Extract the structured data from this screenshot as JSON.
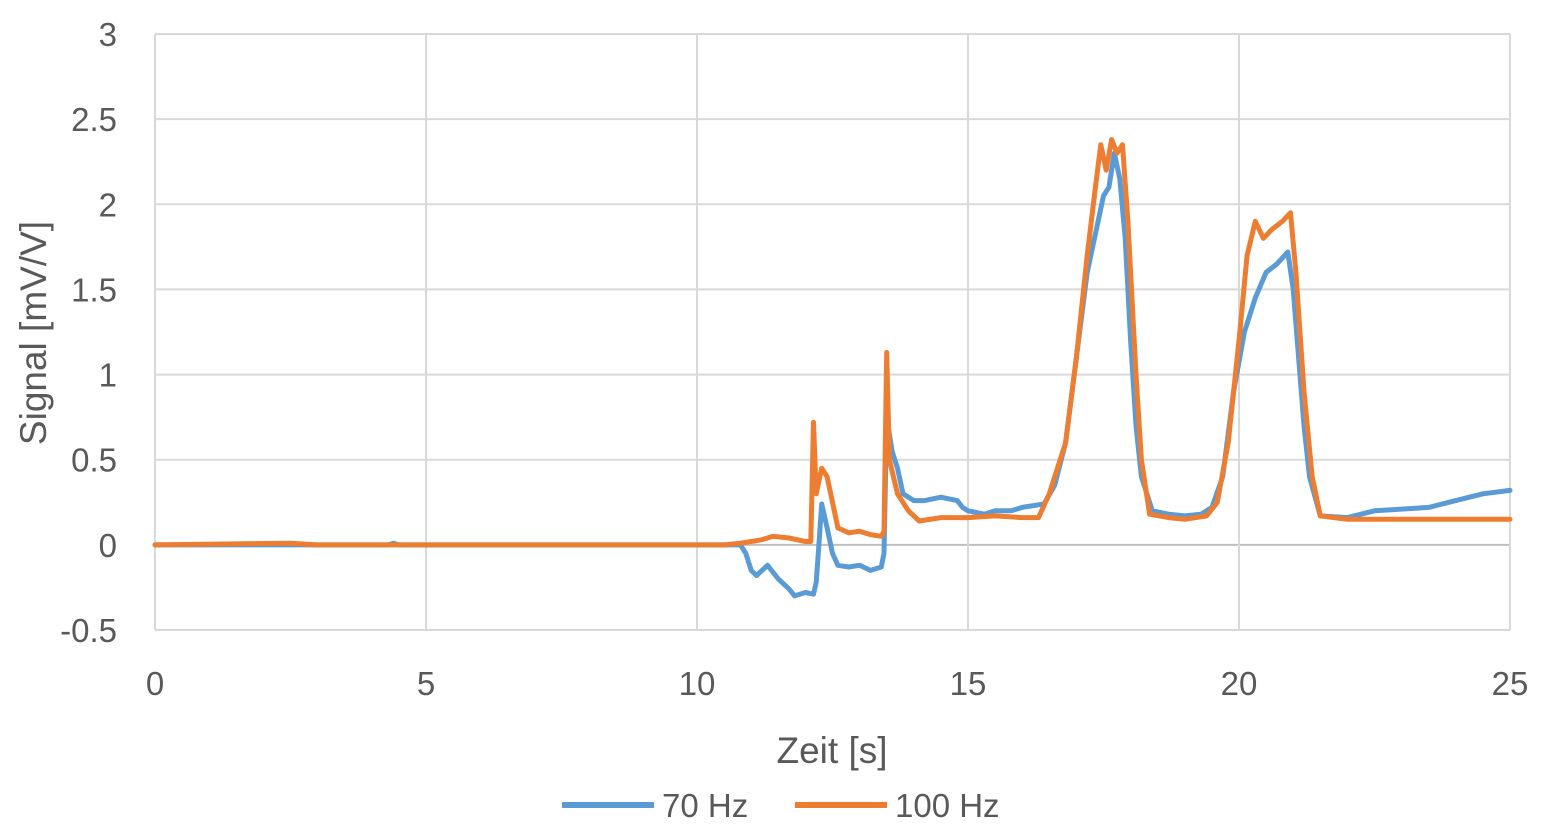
{
  "chart_data": {
    "type": "line",
    "title": "",
    "xlabel": "Zeit [s]",
    "ylabel": "Signal [mV/V]",
    "xlim": [
      0,
      25
    ],
    "ylim": [
      -0.5,
      3
    ],
    "x_ticks": [
      "0",
      "5",
      "10",
      "15",
      "20",
      "25"
    ],
    "y_ticks": [
      "3",
      "2.5",
      "2",
      "1.5",
      "1",
      "0.5",
      "0",
      "-0.5"
    ],
    "grid": true,
    "legend_position": "bottom",
    "series": [
      {
        "name": "70 Hz",
        "color": "#5B9BD5",
        "points": [
          [
            0,
            0.0
          ],
          [
            4.3,
            0.0
          ],
          [
            4.4,
            0.01
          ],
          [
            4.5,
            0.0
          ],
          [
            10.5,
            0.0
          ],
          [
            10.8,
            0.0
          ],
          [
            10.9,
            -0.05
          ],
          [
            11.0,
            -0.15
          ],
          [
            11.1,
            -0.18
          ],
          [
            11.3,
            -0.12
          ],
          [
            11.5,
            -0.2
          ],
          [
            11.7,
            -0.26
          ],
          [
            11.8,
            -0.3
          ],
          [
            12.0,
            -0.28
          ],
          [
            12.15,
            -0.29
          ],
          [
            12.2,
            -0.22
          ],
          [
            12.25,
            0.0
          ],
          [
            12.3,
            0.24
          ],
          [
            12.4,
            0.1
          ],
          [
            12.5,
            -0.05
          ],
          [
            12.6,
            -0.12
          ],
          [
            12.8,
            -0.13
          ],
          [
            13.0,
            -0.12
          ],
          [
            13.2,
            -0.15
          ],
          [
            13.4,
            -0.13
          ],
          [
            13.45,
            -0.05
          ],
          [
            13.5,
            0.75
          ],
          [
            13.6,
            0.55
          ],
          [
            13.7,
            0.45
          ],
          [
            13.8,
            0.3
          ],
          [
            14.0,
            0.26
          ],
          [
            14.2,
            0.26
          ],
          [
            14.5,
            0.28
          ],
          [
            14.8,
            0.26
          ],
          [
            14.9,
            0.22
          ],
          [
            15.0,
            0.2
          ],
          [
            15.3,
            0.18
          ],
          [
            15.5,
            0.2
          ],
          [
            15.8,
            0.2
          ],
          [
            16.0,
            0.22
          ],
          [
            16.2,
            0.23
          ],
          [
            16.4,
            0.24
          ],
          [
            16.6,
            0.35
          ],
          [
            16.8,
            0.6
          ],
          [
            17.0,
            1.1
          ],
          [
            17.2,
            1.6
          ],
          [
            17.4,
            1.9
          ],
          [
            17.5,
            2.05
          ],
          [
            17.6,
            2.1
          ],
          [
            17.7,
            2.3
          ],
          [
            17.8,
            2.15
          ],
          [
            17.9,
            1.8
          ],
          [
            18.0,
            1.2
          ],
          [
            18.1,
            0.7
          ],
          [
            18.2,
            0.4
          ],
          [
            18.4,
            0.2
          ],
          [
            18.7,
            0.18
          ],
          [
            19.0,
            0.17
          ],
          [
            19.3,
            0.18
          ],
          [
            19.5,
            0.22
          ],
          [
            19.7,
            0.4
          ],
          [
            19.9,
            0.9
          ],
          [
            20.1,
            1.25
          ],
          [
            20.3,
            1.45
          ],
          [
            20.5,
            1.6
          ],
          [
            20.7,
            1.65
          ],
          [
            20.9,
            1.72
          ],
          [
            21.0,
            1.5
          ],
          [
            21.1,
            1.1
          ],
          [
            21.2,
            0.7
          ],
          [
            21.3,
            0.4
          ],
          [
            21.5,
            0.17
          ],
          [
            22.0,
            0.16
          ],
          [
            22.5,
            0.2
          ],
          [
            23.0,
            0.21
          ],
          [
            23.5,
            0.22
          ],
          [
            24.0,
            0.26
          ],
          [
            24.5,
            0.3
          ],
          [
            25.0,
            0.32
          ]
        ]
      },
      {
        "name": "100 Hz",
        "color": "#ED7D31",
        "points": [
          [
            0,
            0.0
          ],
          [
            2.5,
            0.01
          ],
          [
            3.0,
            0.0
          ],
          [
            10.5,
            0.0
          ],
          [
            10.8,
            0.01
          ],
          [
            11.0,
            0.02
          ],
          [
            11.2,
            0.03
          ],
          [
            11.4,
            0.05
          ],
          [
            11.7,
            0.04
          ],
          [
            12.0,
            0.02
          ],
          [
            12.1,
            0.02
          ],
          [
            12.15,
            0.72
          ],
          [
            12.2,
            0.3
          ],
          [
            12.3,
            0.45
          ],
          [
            12.4,
            0.4
          ],
          [
            12.5,
            0.25
          ],
          [
            12.6,
            0.1
          ],
          [
            12.8,
            0.07
          ],
          [
            13.0,
            0.08
          ],
          [
            13.2,
            0.06
          ],
          [
            13.4,
            0.05
          ],
          [
            13.45,
            0.08
          ],
          [
            13.5,
            1.13
          ],
          [
            13.55,
            0.5
          ],
          [
            13.7,
            0.3
          ],
          [
            13.9,
            0.2
          ],
          [
            14.1,
            0.14
          ],
          [
            14.5,
            0.16
          ],
          [
            15.0,
            0.16
          ],
          [
            15.5,
            0.17
          ],
          [
            16.0,
            0.16
          ],
          [
            16.3,
            0.16
          ],
          [
            16.5,
            0.3
          ],
          [
            16.8,
            0.6
          ],
          [
            17.0,
            1.1
          ],
          [
            17.2,
            1.7
          ],
          [
            17.35,
            2.1
          ],
          [
            17.45,
            2.35
          ],
          [
            17.55,
            2.2
          ],
          [
            17.65,
            2.38
          ],
          [
            17.75,
            2.3
          ],
          [
            17.85,
            2.35
          ],
          [
            17.95,
            1.9
          ],
          [
            18.1,
            1.0
          ],
          [
            18.2,
            0.5
          ],
          [
            18.35,
            0.18
          ],
          [
            18.7,
            0.16
          ],
          [
            19.0,
            0.15
          ],
          [
            19.4,
            0.17
          ],
          [
            19.6,
            0.25
          ],
          [
            19.8,
            0.6
          ],
          [
            20.0,
            1.2
          ],
          [
            20.15,
            1.7
          ],
          [
            20.3,
            1.9
          ],
          [
            20.45,
            1.8
          ],
          [
            20.6,
            1.85
          ],
          [
            20.8,
            1.9
          ],
          [
            20.95,
            1.95
          ],
          [
            21.05,
            1.6
          ],
          [
            21.2,
            0.9
          ],
          [
            21.35,
            0.4
          ],
          [
            21.5,
            0.17
          ],
          [
            22.0,
            0.15
          ],
          [
            23.0,
            0.15
          ],
          [
            24.0,
            0.15
          ],
          [
            25.0,
            0.15
          ]
        ]
      }
    ]
  }
}
